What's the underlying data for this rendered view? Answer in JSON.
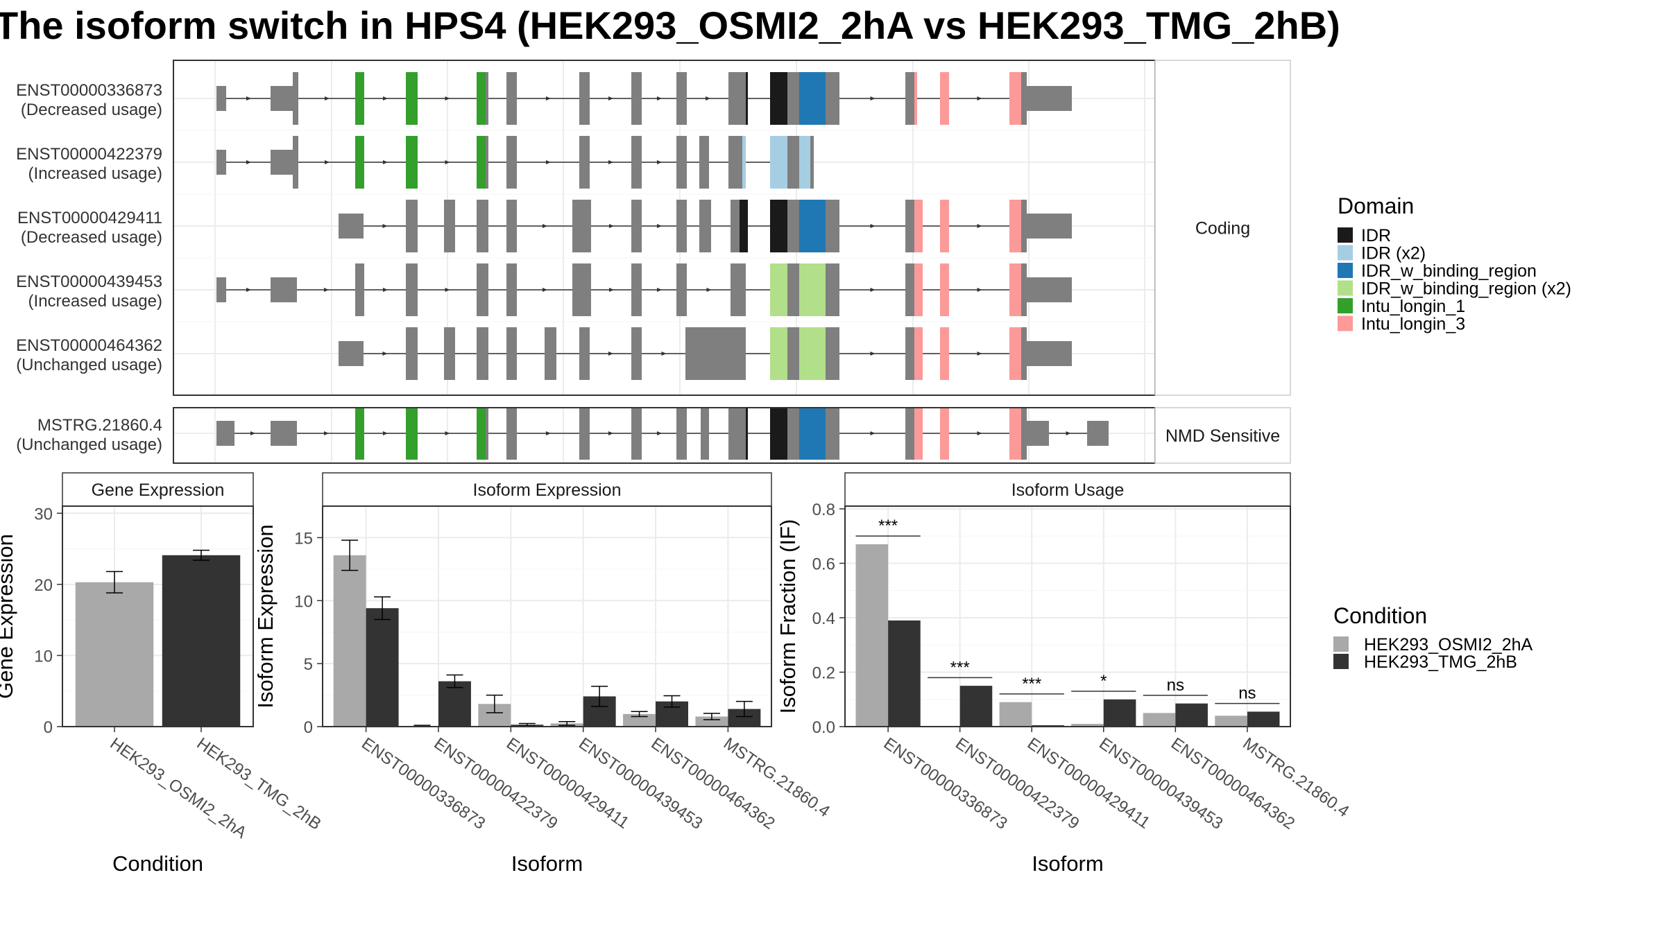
{
  "chart_data": [
    {
      "type": "gene-structure",
      "title": "The isoform switch in HPS4 (HEK293_OSMI2_2hA vs HEK293_TMG_2hB)",
      "groups": [
        {
          "label": "Coding",
          "isoforms": [
            {
              "id": "ENST00000336873",
              "usage": "(Decreased usage)"
            },
            {
              "id": "ENST00000422379",
              "usage": "(Increased usage)"
            },
            {
              "id": "ENST00000429411",
              "usage": "(Decreased usage)"
            },
            {
              "id": "ENST00000439453",
              "usage": "(Increased usage)"
            },
            {
              "id": "ENST00000464362",
              "usage": "(Unchanged usage)"
            }
          ]
        },
        {
          "label": "NMD Sensitive",
          "isoforms": [
            {
              "id": "MSTRG.21860.4",
              "usage": "(Unchanged usage)"
            }
          ]
        }
      ],
      "legend": {
        "title": "Domain",
        "position": "right",
        "items": [
          {
            "label": "IDR",
            "color": "#1a1a1a"
          },
          {
            "label": "IDR (x2)",
            "color": "#a6cee3"
          },
          {
            "label": "IDR_w_binding_region",
            "color": "#1f78b4"
          },
          {
            "label": "IDR_w_binding_region (x2)",
            "color": "#b2df8a"
          },
          {
            "label": "Intu_longin_1",
            "color": "#33a02c"
          },
          {
            "label": "Intu_longin_3",
            "color": "#fb9a99"
          }
        ]
      }
    },
    {
      "type": "bar",
      "title": "Gene Expression",
      "xlabel": "Condition",
      "ylabel": "Gene Expression",
      "categories": [
        "HEK293_OSMI2_2hA",
        "HEK293_TMG_2hB"
      ],
      "values": [
        20.3,
        24.1
      ],
      "errors": [
        1.5,
        0.7
      ],
      "colors": [
        "#a9a9a9",
        "#333333"
      ],
      "ylim": [
        0,
        31
      ],
      "yticks": [
        0,
        10,
        20,
        30
      ]
    },
    {
      "type": "bar",
      "title": "Isoform Expression",
      "xlabel": "Isoform",
      "ylabel": "Isoform Expression",
      "categories": [
        "ENST00000336873",
        "ENST00000422379",
        "ENST00000429411",
        "ENST00000439453",
        "ENST00000464362",
        "MSTRG.21860.4"
      ],
      "series": [
        {
          "name": "HEK293_OSMI2_2hA",
          "color": "#a9a9a9",
          "values": [
            13.6,
            0.05,
            1.8,
            0.25,
            1.0,
            0.8
          ],
          "errors": [
            1.2,
            0.05,
            0.7,
            0.15,
            0.2,
            0.25
          ]
        },
        {
          "name": "HEK293_TMG_2hB",
          "color": "#333333",
          "values": [
            9.4,
            3.6,
            0.15,
            2.4,
            2.0,
            1.4
          ],
          "errors": [
            0.9,
            0.5,
            0.1,
            0.8,
            0.45,
            0.6
          ]
        }
      ],
      "ylim": [
        0,
        17.5
      ],
      "yticks": [
        0,
        5,
        10,
        15
      ]
    },
    {
      "type": "bar",
      "title": "Isoform Usage",
      "xlabel": "Isoform",
      "ylabel": "Isoform Fraction (IF)",
      "categories": [
        "ENST00000336873",
        "ENST00000422379",
        "ENST00000429411",
        "ENST00000439453",
        "ENST00000464362",
        "MSTRG.21860.4"
      ],
      "series": [
        {
          "name": "HEK293_OSMI2_2hA",
          "color": "#a9a9a9",
          "values": [
            0.67,
            0.0,
            0.09,
            0.01,
            0.05,
            0.04
          ]
        },
        {
          "name": "HEK293_TMG_2hB",
          "color": "#333333",
          "values": [
            0.39,
            0.15,
            0.005,
            0.1,
            0.085,
            0.055
          ]
        }
      ],
      "significance": [
        "***",
        "***",
        "***",
        "*",
        "ns",
        "ns"
      ],
      "ylim": [
        0,
        0.81
      ],
      "yticks": [
        "0.0",
        "0.2",
        "0.4",
        "0.6",
        "0.8"
      ]
    }
  ],
  "condition_legend": {
    "title": "Condition",
    "items": [
      {
        "label": "HEK293_OSMI2_2hA",
        "color": "#a9a9a9"
      },
      {
        "label": "HEK293_TMG_2hB",
        "color": "#333333"
      }
    ]
  }
}
